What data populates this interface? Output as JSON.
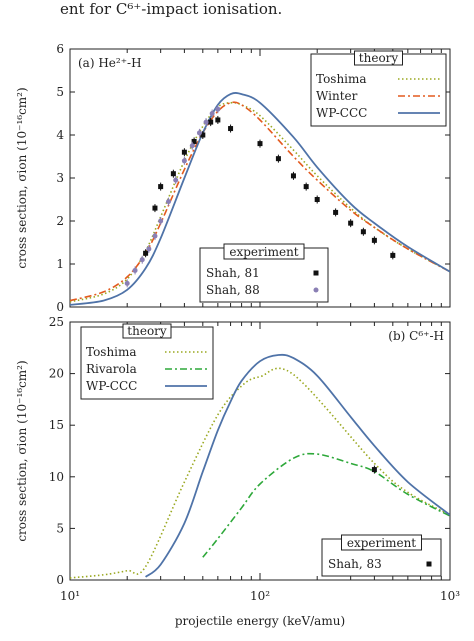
{
  "caption": "ent for C⁶⁺-impact ionisation.",
  "chart_data": [
    {
      "type": "line",
      "panel_label": "(a) He²⁺-H",
      "xscale": "log",
      "xlim": [
        10,
        1000
      ],
      "ylim": [
        0,
        6
      ],
      "yticks": [
        0,
        1,
        2,
        3,
        4,
        5,
        6
      ],
      "ylabel": "cross section, σion (10⁻¹⁶cm²)",
      "xlabel": "",
      "theory_legend_title": "theory",
      "theory_legend_position": "top-right",
      "experiment_legend_title": "experiment",
      "experiment_legend_position": "bottom-center",
      "series": [
        {
          "name": "Toshima",
          "style": "dotted",
          "color": "#9aa820",
          "x": [
            10,
            15,
            20,
            25,
            30,
            40,
            50,
            60,
            70,
            80,
            100,
            150,
            200,
            300,
            400,
            600,
            1000
          ],
          "y": [
            0.12,
            0.3,
            0.65,
            1.3,
            2.1,
            3.4,
            4.2,
            4.65,
            4.75,
            4.7,
            4.45,
            3.65,
            3.05,
            2.3,
            1.85,
            1.35,
            0.82
          ]
        },
        {
          "name": "Winter",
          "style": "dash-dot",
          "color": "#e35a1e",
          "x": [
            10,
            15,
            20,
            25,
            30,
            40,
            50,
            60,
            70,
            80,
            100,
            150,
            200,
            300,
            400,
            600,
            1000
          ],
          "y": [
            0.15,
            0.35,
            0.7,
            1.25,
            1.95,
            3.2,
            4.05,
            4.55,
            4.75,
            4.7,
            4.35,
            3.5,
            2.95,
            2.25,
            1.85,
            1.35,
            0.82
          ]
        },
        {
          "name": "WP-CCC",
          "style": "solid",
          "color": "#4f73a8",
          "x": [
            10,
            15,
            20,
            25,
            30,
            40,
            50,
            60,
            70,
            80,
            100,
            150,
            200,
            300,
            400,
            600,
            1000
          ],
          "y": [
            0.05,
            0.15,
            0.4,
            0.9,
            1.6,
            3.0,
            4.05,
            4.7,
            4.95,
            4.95,
            4.75,
            3.95,
            3.25,
            2.4,
            1.95,
            1.4,
            0.82
          ]
        }
      ],
      "experiments": [
        {
          "name": "Shah, 81",
          "marker": "square",
          "color": "#111111",
          "x": [
            25,
            28,
            30,
            35,
            40,
            45,
            50,
            55,
            60,
            70,
            100,
            125,
            150,
            175,
            200,
            250,
            300,
            350,
            400,
            500
          ],
          "y": [
            1.25,
            2.3,
            2.8,
            3.1,
            3.6,
            3.85,
            4.0,
            4.3,
            4.35,
            4.15,
            3.8,
            3.45,
            3.05,
            2.8,
            2.5,
            2.2,
            1.95,
            1.75,
            1.55,
            1.2
          ]
        },
        {
          "name": "Shah, 88",
          "marker": "circle",
          "color": "#8a7fb4",
          "x": [
            20,
            22,
            24,
            26,
            28,
            30,
            33,
            36,
            40,
            44,
            48,
            52,
            56,
            60
          ],
          "y": [
            0.55,
            0.85,
            1.1,
            1.35,
            1.65,
            2.0,
            2.45,
            2.95,
            3.4,
            3.75,
            4.05,
            4.3,
            4.5,
            4.6
          ]
        }
      ]
    },
    {
      "type": "line",
      "panel_label": "(b) C⁶⁺-H",
      "xscale": "log",
      "xlim": [
        10,
        1000
      ],
      "ylim": [
        0,
        25
      ],
      "yticks": [
        0,
        5,
        10,
        15,
        20,
        25
      ],
      "xticks": [
        "10¹",
        "10²",
        "10³"
      ],
      "ylabel": "cross section, σion (10⁻¹⁶cm²)",
      "xlabel": "projectile energy (keV/amu)",
      "theory_legend_title": "theory",
      "theory_legend_position": "top-left",
      "experiment_legend_title": "experiment",
      "experiment_legend_position": "bottom-right",
      "series": [
        {
          "name": "Toshima",
          "style": "dotted",
          "color": "#9aa820",
          "x": [
            10,
            15,
            20,
            25,
            40,
            60,
            80,
            100,
            150,
            400,
            600,
            1000
          ],
          "y": [
            0.2,
            0.5,
            0.9,
            1.3,
            9.5,
            16.0,
            18.8,
            19.7,
            19.9,
            11.3,
            8.5,
            6.3
          ]
        },
        {
          "name": "Rivarola",
          "style": "dash-dot",
          "color": "#2ea83a",
          "x": [
            50,
            60,
            80,
            100,
            150,
            200,
            300,
            400,
            600,
            1000
          ],
          "y": [
            2.2,
            4.0,
            7.0,
            9.3,
            11.8,
            12.2,
            11.3,
            10.5,
            8.3,
            6.2
          ]
        },
        {
          "name": "WP-CCC",
          "style": "solid",
          "color": "#4f73a8",
          "x": [
            25,
            30,
            40,
            50,
            60,
            70,
            80,
            100,
            125,
            150,
            200,
            300,
            400,
            600,
            1000
          ],
          "y": [
            0.3,
            1.5,
            5.5,
            10.5,
            14.5,
            17.3,
            19.3,
            21.2,
            21.8,
            21.5,
            19.8,
            15.8,
            13.0,
            9.5,
            6.3
          ]
        }
      ],
      "experiments": [
        {
          "name": "Shah, 83",
          "marker": "square",
          "color": "#111111",
          "x": [
            400
          ],
          "y": [
            10.7
          ]
        }
      ]
    }
  ]
}
